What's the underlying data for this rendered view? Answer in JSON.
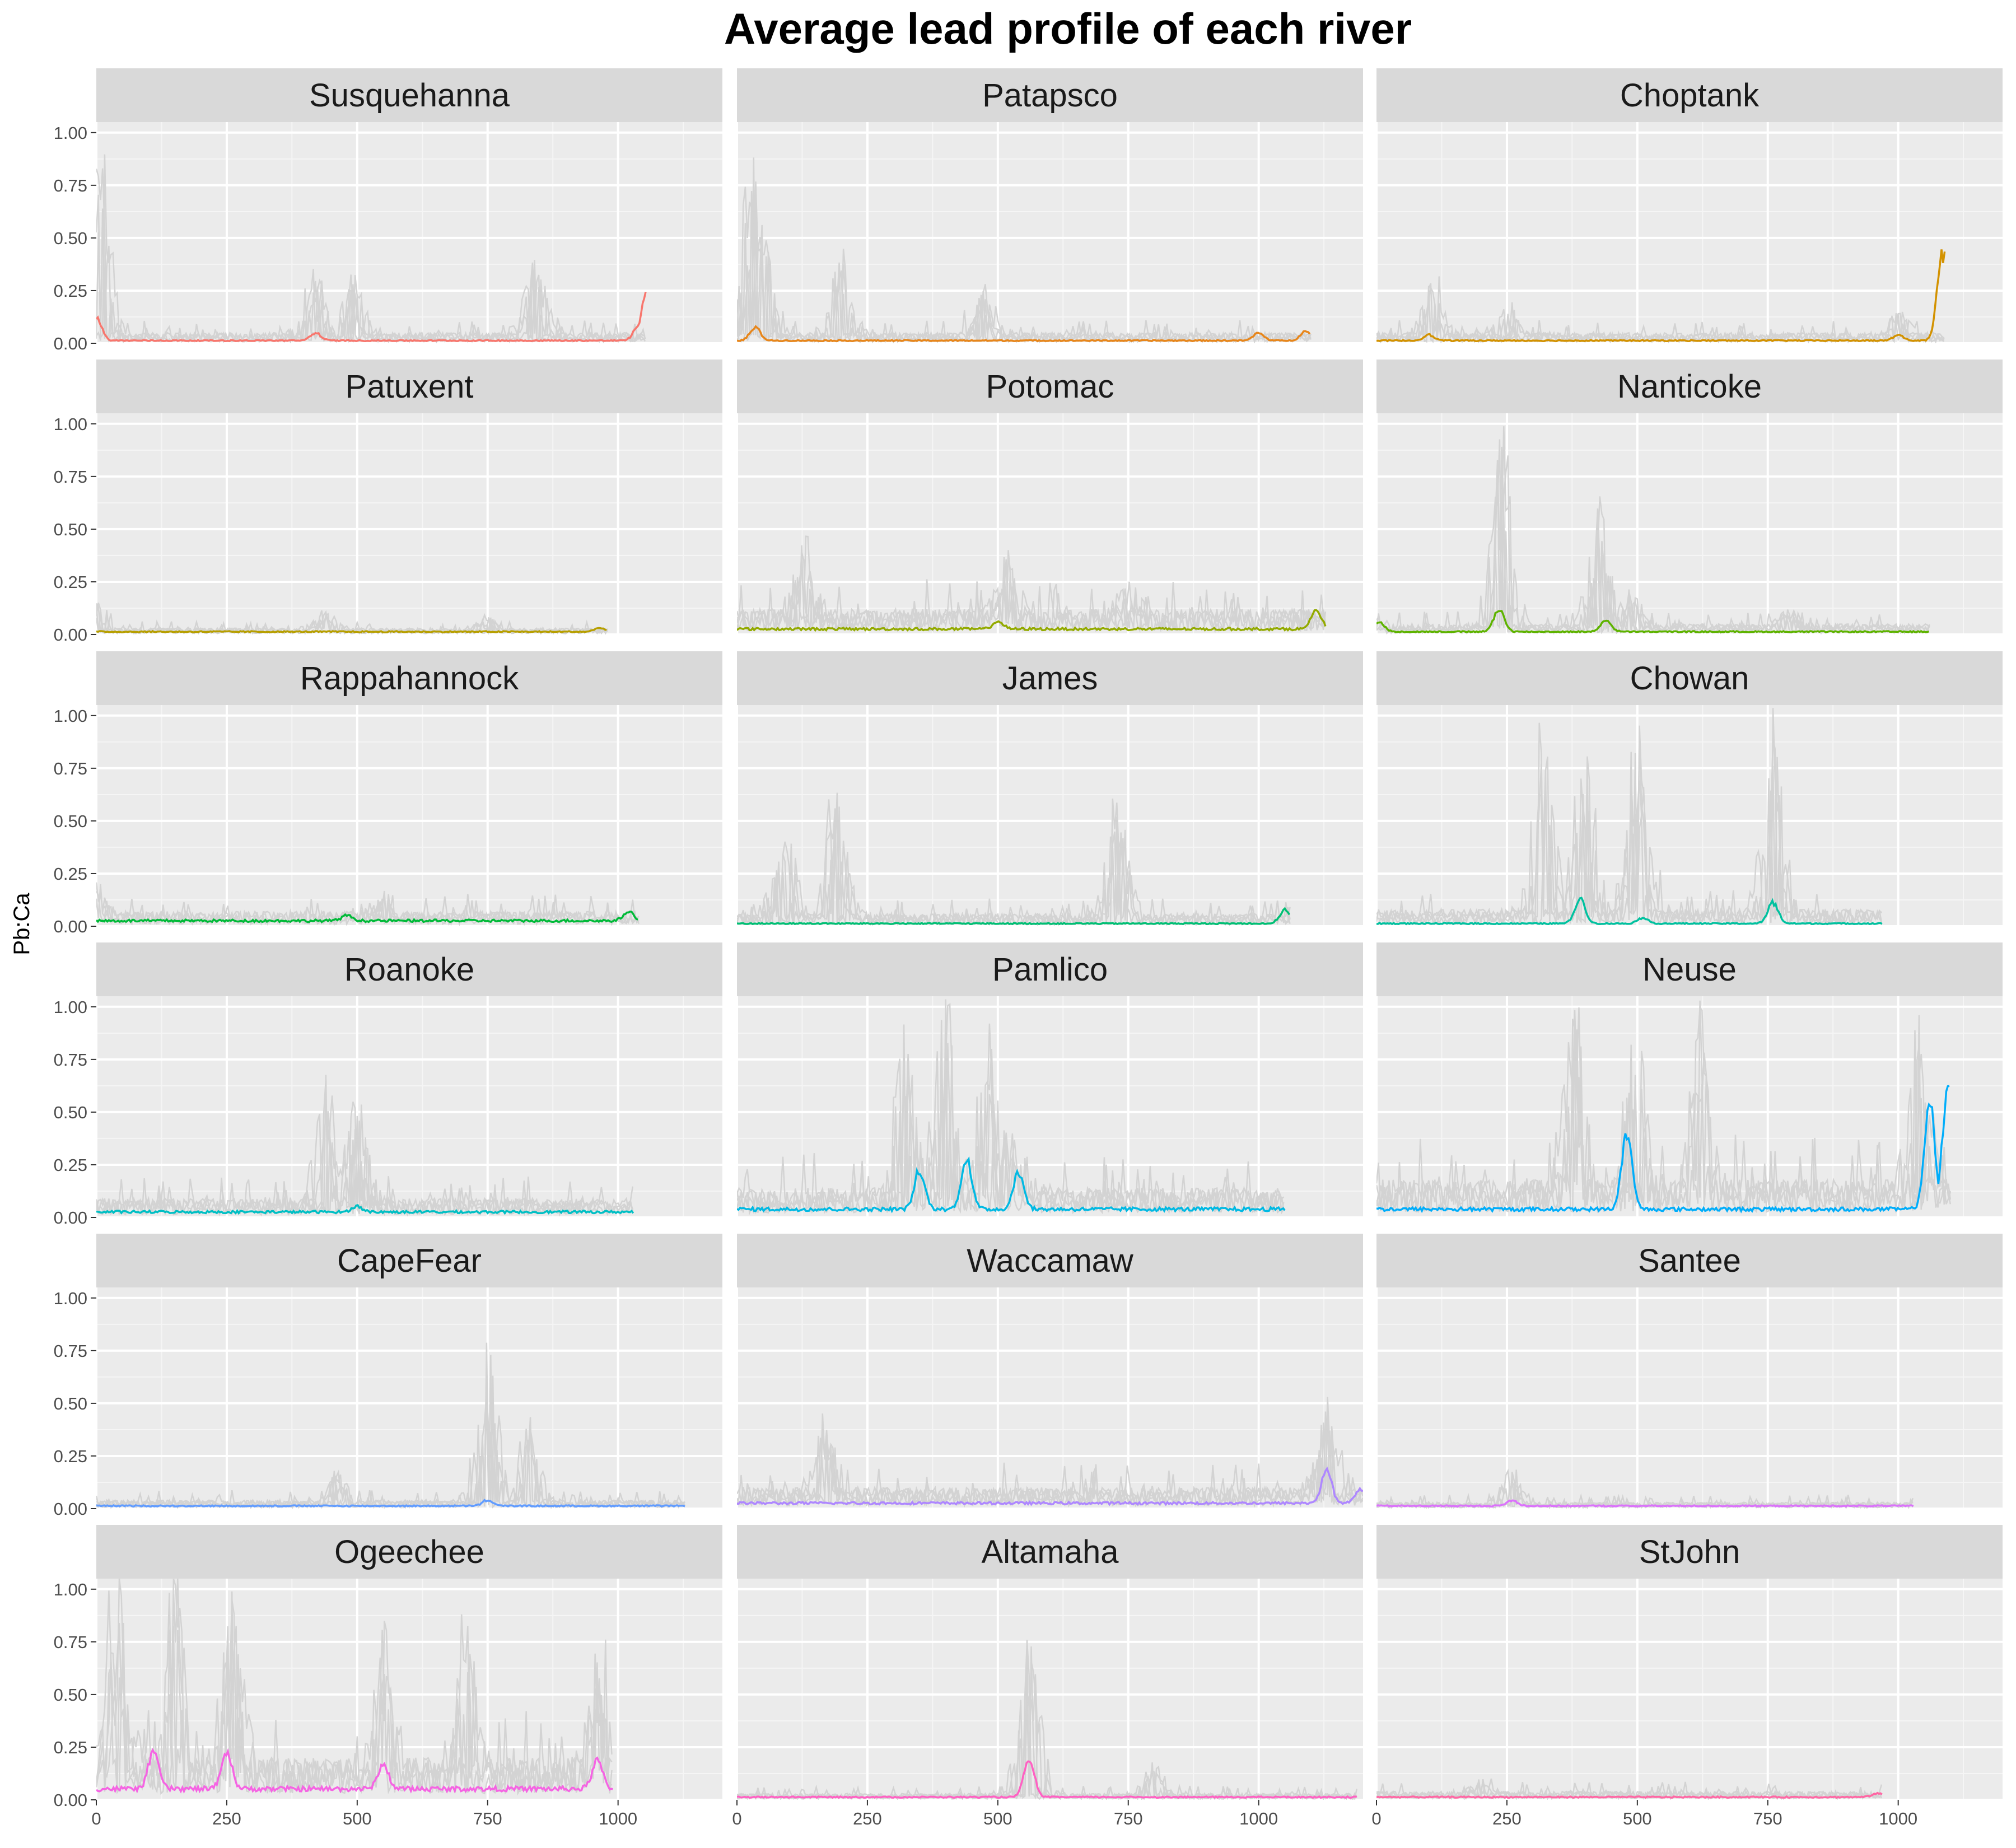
{
  "chart_data": {
    "type": "line",
    "title": "Average lead profile of each river",
    "xlabel": "",
    "ylabel": "Pb:Ca",
    "xlim": [
      0,
      1200
    ],
    "ylim": [
      0,
      1.05
    ],
    "x_ticks": [
      0,
      250,
      500,
      750,
      1000
    ],
    "y_ticks": [
      0,
      0.25,
      0.5,
      0.75,
      1.0
    ],
    "x_tick_labels": [
      "0",
      "250",
      "500",
      "750",
      "1000"
    ],
    "y_tick_labels": [
      "0.00",
      "0.25",
      "0.50",
      "0.75",
      "1.00"
    ],
    "grid": true,
    "legend": "none",
    "background_series_color": "#d3d3d3",
    "panel_background": "#ebebeb",
    "strip_background": "#d9d9d9",
    "panels": [
      {
        "river": "Susquehanna",
        "color": "#F8766D",
        "x_max": 1055,
        "baseline": 0.01,
        "bg_level": 0.05,
        "mean_peaks": [
          [
            0,
            0.12
          ],
          [
            420,
            0.04
          ],
          [
            1040,
            0.08
          ],
          [
            1055,
            0.27
          ]
        ],
        "bg_peaks": [
          [
            5,
            0.95
          ],
          [
            420,
            0.4
          ],
          [
            490,
            0.32
          ],
          [
            840,
            0.38
          ]
        ]
      },
      {
        "river": "Patapsco",
        "color": "#E7861B",
        "x_max": 1100,
        "baseline": 0.01,
        "bg_level": 0.05,
        "mean_peaks": [
          [
            35,
            0.07
          ],
          [
            1000,
            0.04
          ],
          [
            1090,
            0.05
          ]
        ],
        "bg_peaks": [
          [
            30,
            0.92
          ],
          [
            50,
            0.55
          ],
          [
            200,
            0.42
          ],
          [
            470,
            0.22
          ]
        ]
      },
      {
        "river": "Choptank",
        "color": "#D39200",
        "x_max": 1090,
        "baseline": 0.01,
        "bg_level": 0.05,
        "mean_peaks": [
          [
            100,
            0.03
          ],
          [
            1000,
            0.03
          ],
          [
            1085,
            0.46
          ]
        ],
        "bg_peaks": [
          [
            105,
            0.37
          ],
          [
            250,
            0.15
          ],
          [
            1000,
            0.14
          ]
        ]
      },
      {
        "river": "Patuxent",
        "color": "#B79F00",
        "x_max": 980,
        "baseline": 0.01,
        "bg_level": 0.03,
        "mean_peaks": [
          [
            965,
            0.02
          ]
        ],
        "bg_peaks": [
          [
            5,
            0.15
          ],
          [
            440,
            0.1
          ],
          [
            750,
            0.07
          ]
        ]
      },
      {
        "river": "Potomac",
        "color": "#93AA00",
        "x_max": 1130,
        "baseline": 0.02,
        "bg_level": 0.12,
        "mean_peaks": [
          [
            500,
            0.04
          ],
          [
            1110,
            0.1
          ]
        ],
        "bg_peaks": [
          [
            130,
            0.42
          ],
          [
            520,
            0.3
          ],
          [
            750,
            0.2
          ]
        ]
      },
      {
        "river": "Nanticoke",
        "color": "#5EB300",
        "x_max": 1060,
        "baseline": 0.01,
        "bg_level": 0.05,
        "mean_peaks": [
          [
            5,
            0.05
          ],
          [
            235,
            0.12
          ],
          [
            440,
            0.06
          ]
        ],
        "bg_peaks": [
          [
            240,
            0.99
          ],
          [
            430,
            0.65
          ],
          [
            490,
            0.2
          ],
          [
            790,
            0.1
          ]
        ]
      },
      {
        "river": "Rappahannock",
        "color": "#00BA38",
        "x_max": 1040,
        "baseline": 0.02,
        "bg_level": 0.07,
        "mean_peaks": [
          [
            480,
            0.03
          ],
          [
            1020,
            0.05
          ]
        ],
        "bg_peaks": [
          [
            5,
            0.18
          ],
          [
            550,
            0.12
          ]
        ]
      },
      {
        "river": "James",
        "color": "#00BF74",
        "x_max": 1060,
        "baseline": 0.01,
        "bg_level": 0.06,
        "mean_peaks": [
          [
            1050,
            0.07
          ]
        ],
        "bg_peaks": [
          [
            90,
            0.54
          ],
          [
            190,
            0.77
          ],
          [
            730,
            0.62
          ]
        ]
      },
      {
        "river": "Chowan",
        "color": "#00C19F",
        "x_max": 970,
        "baseline": 0.01,
        "bg_level": 0.08,
        "mean_peaks": [
          [
            390,
            0.13
          ],
          [
            510,
            0.03
          ],
          [
            760,
            0.11
          ]
        ],
        "bg_peaks": [
          [
            320,
            0.98
          ],
          [
            400,
            0.95
          ],
          [
            500,
            0.97
          ],
          [
            760,
            0.99
          ]
        ]
      },
      {
        "river": "Roanoke",
        "color": "#00BFC4",
        "x_max": 1030,
        "baseline": 0.02,
        "bg_level": 0.09,
        "mean_peaks": [
          [
            500,
            0.03
          ]
        ],
        "bg_peaks": [
          [
            440,
            0.66
          ],
          [
            500,
            0.64
          ]
        ]
      },
      {
        "river": "Pamlico",
        "color": "#00B9E3",
        "x_max": 1050,
        "baseline": 0.03,
        "bg_level": 0.14,
        "mean_peaks": [
          [
            350,
            0.2
          ],
          [
            440,
            0.27
          ],
          [
            540,
            0.2
          ]
        ],
        "bg_peaks": [
          [
            320,
            0.99
          ],
          [
            400,
            0.99
          ],
          [
            480,
            0.98
          ],
          [
            520,
            0.4
          ]
        ]
      },
      {
        "river": "Neuse",
        "color": "#00ADFA",
        "x_max": 1100,
        "baseline": 0.03,
        "bg_level": 0.18,
        "mean_peaks": [
          [
            480,
            0.4
          ],
          [
            1060,
            0.55
          ],
          [
            1095,
            0.64
          ]
        ],
        "bg_peaks": [
          [
            380,
            0.99
          ],
          [
            500,
            0.99
          ],
          [
            620,
            0.99
          ],
          [
            1040,
            0.9
          ]
        ]
      },
      {
        "river": "CapeFear",
        "color": "#619CFF",
        "x_max": 1130,
        "baseline": 0.01,
        "bg_level": 0.04,
        "mean_peaks": [
          [
            750,
            0.03
          ]
        ],
        "bg_peaks": [
          [
            460,
            0.16
          ],
          [
            750,
            0.83
          ],
          [
            830,
            0.42
          ]
        ]
      },
      {
        "river": "Waccamaw",
        "color": "#AE87FF",
        "x_max": 1200,
        "baseline": 0.02,
        "bg_level": 0.1,
        "mean_peaks": [
          [
            1130,
            0.17
          ],
          [
            1195,
            0.07
          ]
        ],
        "bg_peaks": [
          [
            170,
            0.4
          ],
          [
            1130,
            0.52
          ]
        ]
      },
      {
        "river": "Santee",
        "color": "#DB72FB",
        "x_max": 1030,
        "baseline": 0.01,
        "bg_level": 0.03,
        "mean_peaks": [
          [
            260,
            0.03
          ]
        ],
        "bg_peaks": [
          [
            260,
            0.18
          ]
        ]
      },
      {
        "river": "Ogeechee",
        "color": "#F564E3",
        "x_max": 990,
        "baseline": 0.04,
        "bg_level": 0.2,
        "mean_peaks": [
          [
            110,
            0.2
          ],
          [
            250,
            0.2
          ],
          [
            550,
            0.13
          ],
          [
            960,
            0.15
          ]
        ],
        "bg_peaks": [
          [
            40,
            0.95
          ],
          [
            150,
            0.99
          ],
          [
            260,
            0.95
          ],
          [
            550,
            0.75
          ],
          [
            710,
            0.8
          ],
          [
            960,
            0.6
          ]
        ]
      },
      {
        "river": "Altamaha",
        "color": "#FF61C3",
        "x_max": 1190,
        "baseline": 0.01,
        "bg_level": 0.03,
        "mean_peaks": [
          [
            560,
            0.2
          ]
        ],
        "bg_peaks": [
          [
            560,
            0.78
          ],
          [
            800,
            0.17
          ]
        ]
      },
      {
        "river": "StJohn",
        "color": "#FF67A4",
        "x_max": 970,
        "baseline": 0.01,
        "bg_level": 0.04,
        "mean_peaks": [
          [
            960,
            0.02
          ]
        ],
        "bg_peaks": [
          [
            200,
            0.08
          ]
        ]
      }
    ]
  }
}
